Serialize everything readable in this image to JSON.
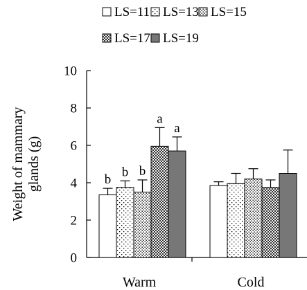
{
  "chart_data": {
    "type": "bar",
    "title": "",
    "xlabel": "",
    "ylabel_lines": [
      "Weight of mammary",
      "glands (g)"
    ],
    "ylim": [
      0,
      10
    ],
    "yticks": [
      0,
      2,
      4,
      6,
      8,
      10
    ],
    "categories": [
      "Warm",
      "Cold"
    ],
    "legend_position": "top",
    "series": [
      {
        "name": "LS=11",
        "pattern": "white",
        "values": [
          3.35,
          3.85
        ],
        "errors": [
          0.35,
          0.2
        ],
        "letters": [
          "b",
          ""
        ]
      },
      {
        "name": "LS=13",
        "pattern": "sparse-dots",
        "values": [
          3.75,
          3.95
        ],
        "errors": [
          0.35,
          0.55
        ],
        "letters": [
          "b",
          ""
        ]
      },
      {
        "name": "LS=15",
        "pattern": "dense-dots",
        "values": [
          3.5,
          4.2
        ],
        "errors": [
          0.65,
          0.55
        ],
        "letters": [
          "b",
          ""
        ]
      },
      {
        "name": "LS=17",
        "pattern": "checker",
        "values": [
          5.95,
          3.75
        ],
        "errors": [
          1.0,
          0.4
        ],
        "letters": [
          "a",
          ""
        ]
      },
      {
        "name": "LS=19",
        "pattern": "gray",
        "values": [
          5.7,
          4.5
        ],
        "errors": [
          0.75,
          1.25
        ],
        "letters": [
          "a",
          ""
        ]
      }
    ]
  }
}
